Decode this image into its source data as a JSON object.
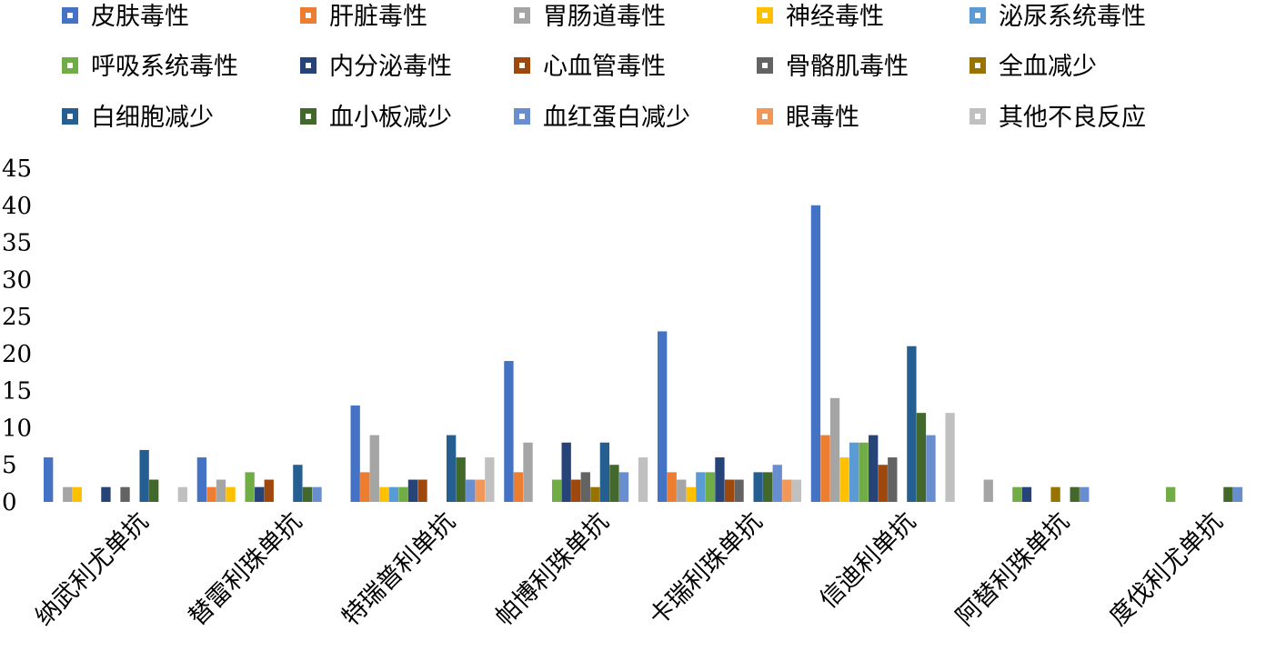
{
  "chart_data": {
    "type": "bar",
    "categories": [
      "纳武利尤单抗",
      "替雷利珠单抗",
      "特瑞普利单抗",
      "帕博利珠单抗",
      "卡瑞利珠单抗",
      "信迪利单抗",
      "阿替利珠单抗",
      "度伐利尤单抗"
    ],
    "ylim": [
      0,
      45
    ],
    "yticks": [
      0,
      5,
      10,
      15,
      20,
      25,
      30,
      35,
      40,
      45
    ],
    "grid": false,
    "legend_position": "top",
    "series": [
      {
        "name": "皮肤毒性",
        "color": "#4472C4",
        "values": [
          6,
          6,
          13,
          19,
          23,
          40,
          0,
          0
        ]
      },
      {
        "name": "肝脏毒性",
        "color": "#ED7D31",
        "values": [
          0,
          2,
          4,
          4,
          4,
          9,
          0,
          0
        ]
      },
      {
        "name": "胃肠道毒性",
        "color": "#A5A5A5",
        "values": [
          2,
          3,
          9,
          8,
          3,
          14,
          3,
          0
        ]
      },
      {
        "name": "神经毒性",
        "color": "#FFC000",
        "values": [
          2,
          2,
          2,
          0,
          2,
          6,
          0,
          0
        ]
      },
      {
        "name": "泌尿系统毒性",
        "color": "#5B9BD5",
        "values": [
          0,
          0,
          2,
          0,
          4,
          8,
          0,
          0
        ]
      },
      {
        "name": "呼吸系统毒性",
        "color": "#70AD47",
        "values": [
          0,
          4,
          2,
          3,
          4,
          8,
          2,
          2
        ]
      },
      {
        "name": "内分泌毒性",
        "color": "#264478",
        "values": [
          2,
          2,
          3,
          8,
          6,
          9,
          2,
          0
        ]
      },
      {
        "name": "心血管毒性",
        "color": "#9E480E",
        "values": [
          0,
          3,
          3,
          3,
          3,
          5,
          0,
          0
        ]
      },
      {
        "name": "骨骼肌毒性",
        "color": "#636363",
        "values": [
          2,
          0,
          0,
          4,
          3,
          6,
          0,
          0
        ]
      },
      {
        "name": "全血减少",
        "color": "#997300",
        "values": [
          0,
          0,
          0,
          2,
          0,
          0,
          2,
          0
        ]
      },
      {
        "name": "白细胞减少",
        "color": "#255E91",
        "values": [
          7,
          5,
          9,
          8,
          4,
          21,
          0,
          0
        ]
      },
      {
        "name": "血小板减少",
        "color": "#43682B",
        "values": [
          3,
          2,
          6,
          5,
          4,
          12,
          2,
          2
        ]
      },
      {
        "name": "血红蛋白减少",
        "color": "#698ED0",
        "values": [
          0,
          2,
          3,
          4,
          5,
          9,
          2,
          2
        ]
      },
      {
        "name": "眼毒性",
        "color": "#F1975A",
        "values": [
          0,
          0,
          3,
          0,
          3,
          0,
          0,
          0
        ]
      },
      {
        "name": "其他不良反应",
        "color": "#C0C0C0",
        "values": [
          2,
          0,
          6,
          6,
          3,
          12,
          0,
          0
        ]
      }
    ]
  }
}
